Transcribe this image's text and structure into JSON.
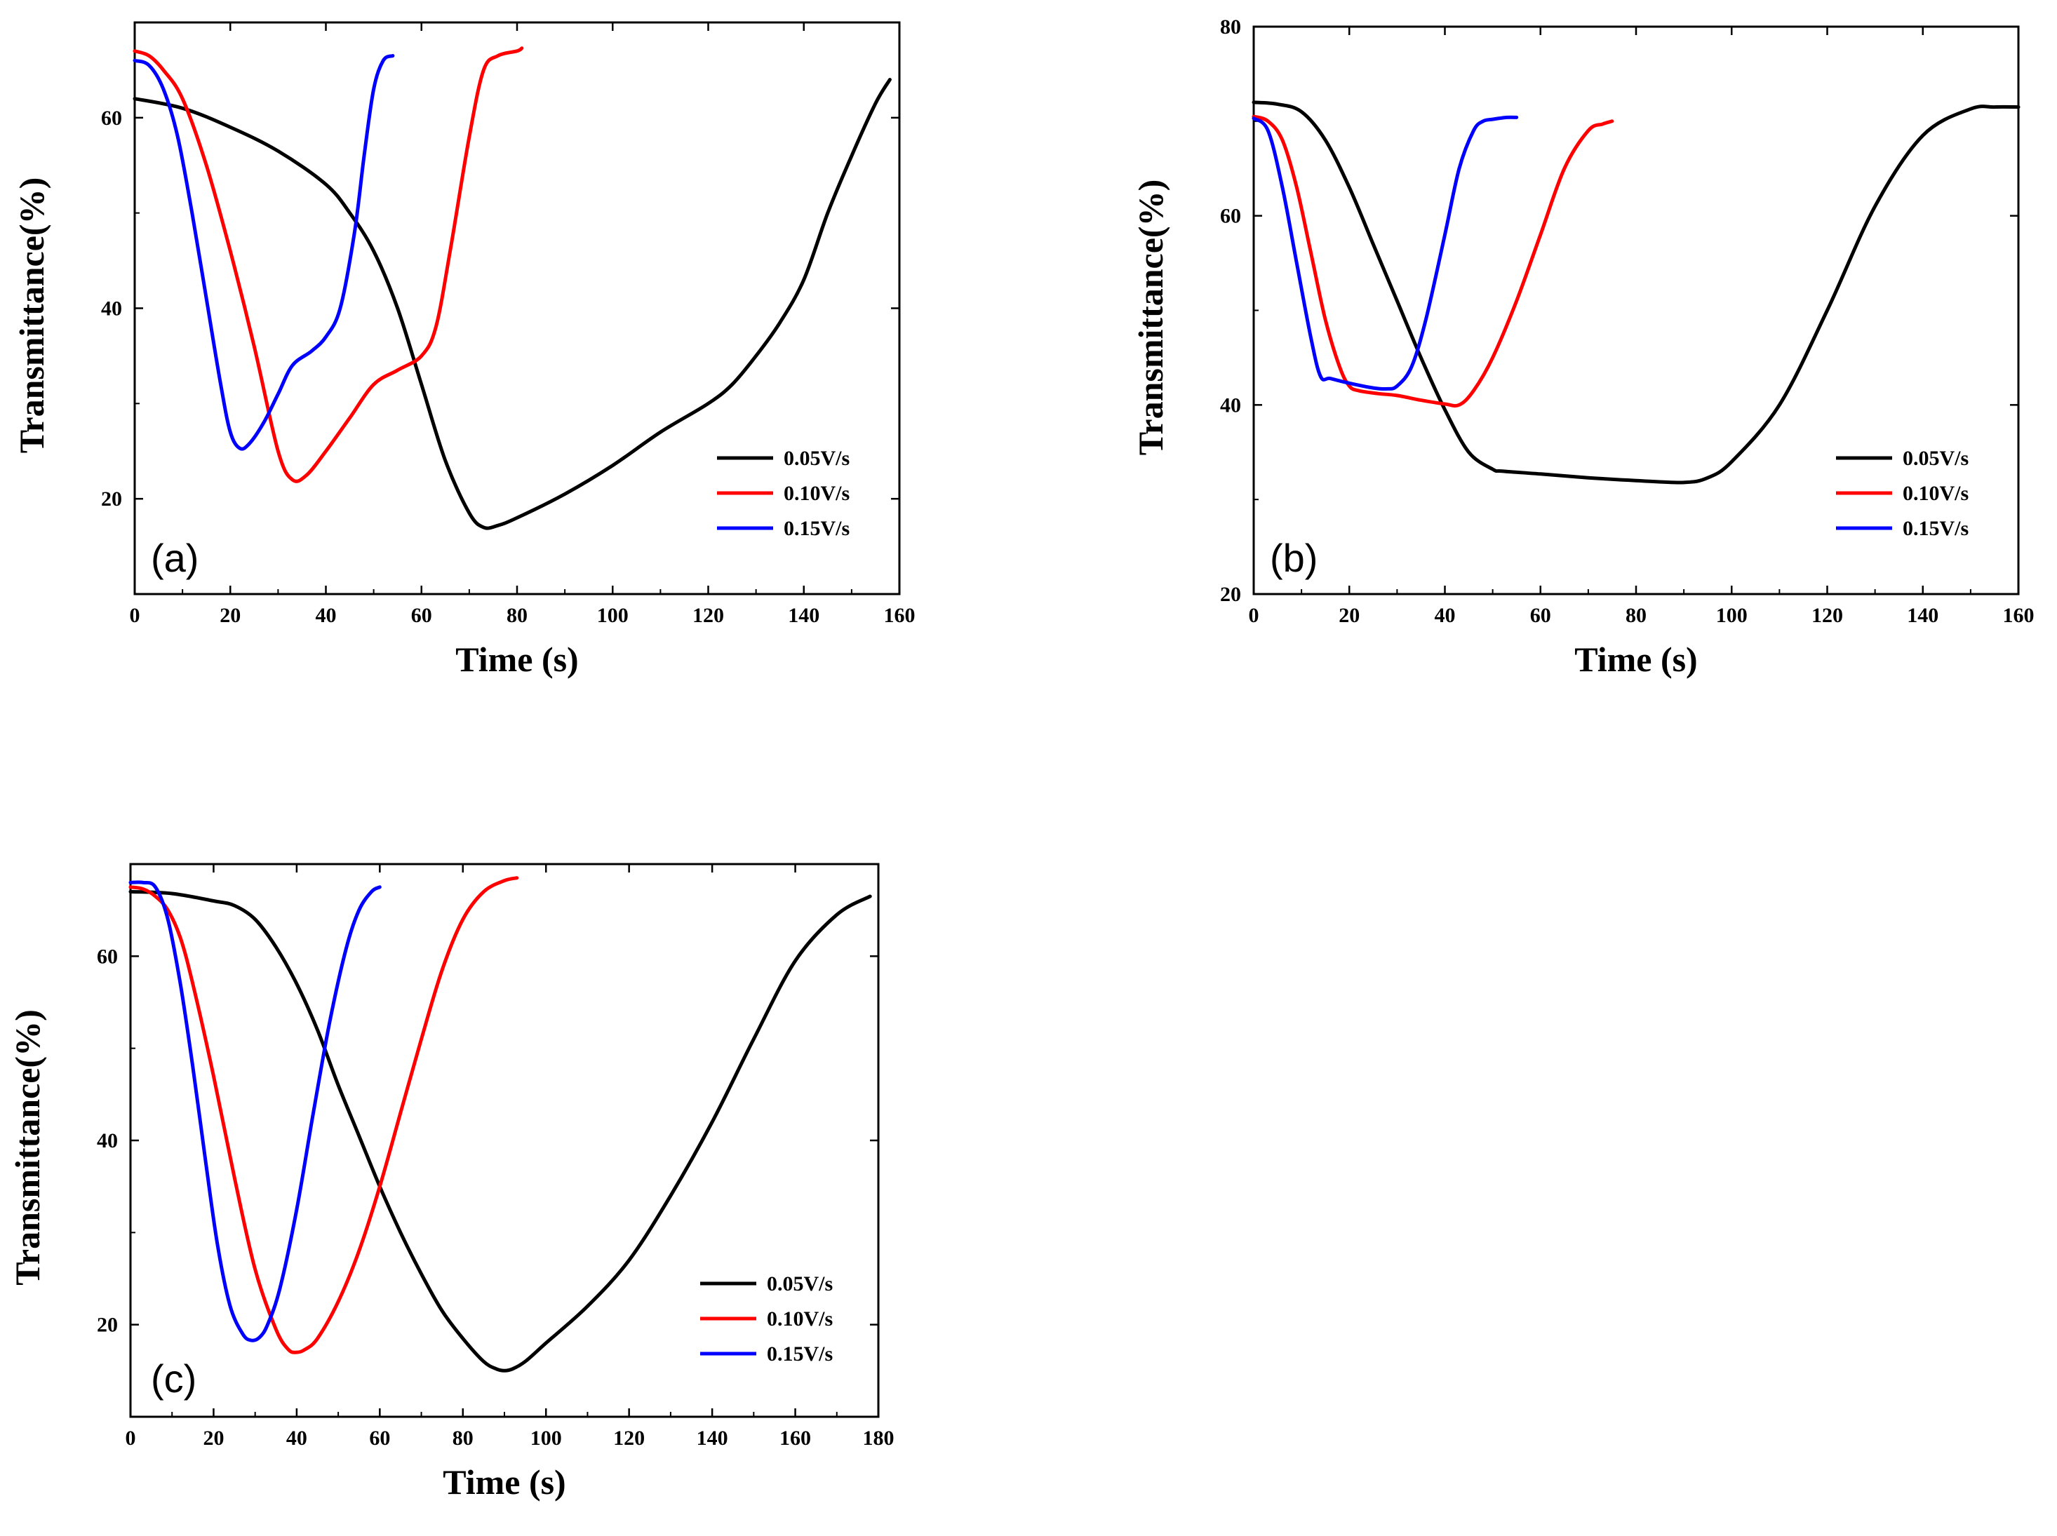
{
  "chart_data": [
    {
      "type": "line",
      "panel_label": "(a)",
      "xlabel": "Time (s)",
      "ylabel": "Transmittance(%)",
      "xlim": [
        0,
        160
      ],
      "ylim": [
        10,
        70
      ],
      "xticks": [
        0,
        20,
        40,
        60,
        80,
        100,
        120,
        140,
        160
      ],
      "yticks": [
        20,
        40,
        60
      ],
      "legend_position": "bottom-right",
      "series": [
        {
          "name": "0.05V/s",
          "color": "#000000",
          "x": [
            0,
            10,
            20,
            30,
            40,
            45,
            50,
            55,
            60,
            65,
            70,
            73,
            76,
            80,
            90,
            100,
            110,
            120,
            125,
            130,
            135,
            140,
            145,
            150,
            155,
            158
          ],
          "y": [
            62,
            61,
            59,
            56.5,
            53,
            50,
            46,
            40,
            32,
            24,
            18.5,
            17,
            17.2,
            18,
            20.5,
            23.5,
            27,
            30,
            32,
            35,
            38.5,
            43,
            50,
            56,
            61.5,
            64
          ]
        },
        {
          "name": "0.10V/s",
          "color": "#ff0000",
          "x": [
            0,
            3,
            6,
            10,
            15,
            20,
            25,
            30,
            33,
            36,
            40,
            45,
            50,
            55,
            60,
            63,
            66,
            70,
            73,
            76,
            80,
            81
          ],
          "y": [
            67,
            66.5,
            65,
            62,
            55,
            46,
            36,
            25,
            22,
            22.5,
            25,
            28.5,
            32,
            33.5,
            35,
            38,
            46,
            58,
            65,
            66.5,
            67,
            67.3
          ]
        },
        {
          "name": "0.15V/s",
          "color": "#0000ff",
          "x": [
            0,
            3,
            6,
            9,
            12,
            15,
            18,
            20,
            22,
            24,
            27,
            30,
            33,
            37,
            40,
            43,
            46,
            48,
            50,
            52,
            54
          ],
          "y": [
            66,
            65.5,
            63,
            58,
            50,
            41,
            32,
            27,
            25.3,
            25.8,
            28,
            31,
            34,
            35.5,
            37,
            40,
            48,
            56,
            63,
            66,
            66.5
          ]
        }
      ]
    },
    {
      "type": "line",
      "panel_label": "(b)",
      "xlabel": "Time (s)",
      "ylabel": "Transmittance(%)",
      "xlim": [
        0,
        160
      ],
      "ylim": [
        20,
        80
      ],
      "xticks": [
        0,
        20,
        40,
        60,
        80,
        100,
        120,
        140,
        160
      ],
      "yticks": [
        20,
        40,
        60,
        80
      ],
      "legend_position": "bottom-right",
      "series": [
        {
          "name": "0.05V/s",
          "color": "#000000",
          "x": [
            0,
            5,
            10,
            15,
            20,
            25,
            30,
            35,
            40,
            45,
            50,
            52,
            60,
            70,
            80,
            90,
            95,
            100,
            110,
            120,
            130,
            140,
            150,
            155,
            160
          ],
          "y": [
            72,
            71.8,
            71,
            68,
            63,
            57,
            51,
            45,
            39.5,
            35,
            33.2,
            33,
            32.7,
            32.3,
            32,
            31.8,
            32.3,
            34,
            40,
            50,
            61,
            68.5,
            71.3,
            71.5,
            71.5
          ]
        },
        {
          "name": "0.10V/s",
          "color": "#ff0000",
          "x": [
            0,
            3,
            6,
            9,
            12,
            15,
            18,
            20,
            22,
            26,
            30,
            35,
            40,
            43,
            46,
            50,
            55,
            60,
            65,
            70,
            73,
            75
          ],
          "y": [
            70.5,
            70,
            68,
            63,
            56,
            49,
            44,
            42,
            41.5,
            41.2,
            41,
            40.5,
            40.1,
            40,
            41.5,
            45,
            51,
            58,
            65,
            69,
            69.7,
            70
          ]
        },
        {
          "name": "0.15V/s",
          "color": "#0000ff",
          "x": [
            0,
            3,
            6,
            9,
            12,
            14,
            16,
            20,
            25,
            28,
            30,
            33,
            36,
            40,
            43,
            46,
            48,
            50,
            53,
            55
          ],
          "y": [
            70.3,
            69,
            63,
            55,
            47,
            43,
            42.8,
            42.3,
            41.8,
            41.7,
            42,
            44,
            49,
            58,
            65,
            69,
            70,
            70.2,
            70.4,
            70.4
          ]
        }
      ]
    },
    {
      "type": "line",
      "panel_label": "(c)",
      "xlabel": "Time (s)",
      "ylabel": "Transmittance(%)",
      "xlim": [
        0,
        180
      ],
      "ylim": [
        10,
        70
      ],
      "xticks": [
        0,
        20,
        40,
        60,
        80,
        100,
        120,
        140,
        160,
        180
      ],
      "yticks": [
        20,
        40,
        60
      ],
      "legend_position": "bottom-right",
      "series": [
        {
          "name": "0.05V/s",
          "color": "#000000",
          "x": [
            0,
            10,
            20,
            25,
            30,
            35,
            40,
            45,
            50,
            55,
            60,
            65,
            70,
            75,
            80,
            85,
            88,
            90,
            92,
            95,
            100,
            110,
            120,
            130,
            140,
            150,
            160,
            170,
            178
          ],
          "y": [
            67,
            66.8,
            66,
            65.5,
            64,
            61,
            57,
            52,
            46,
            40.5,
            35,
            30,
            25.5,
            21.5,
            18.5,
            16,
            15.2,
            15,
            15.2,
            16,
            18,
            22,
            27,
            34,
            42,
            51,
            59.5,
            64.5,
            66.5
          ]
        },
        {
          "name": "0.10V/s",
          "color": "#ff0000",
          "x": [
            0,
            3,
            6,
            9,
            12,
            15,
            20,
            25,
            30,
            35,
            38,
            40,
            42,
            45,
            50,
            55,
            60,
            65,
            70,
            75,
            80,
            85,
            90,
            93
          ],
          "y": [
            67.5,
            67.3,
            66.5,
            65,
            62,
            57,
            47,
            36,
            26,
            19.5,
            17.3,
            17,
            17.3,
            18.5,
            22.5,
            28,
            35,
            43,
            51,
            58.5,
            64,
            67,
            68.2,
            68.5
          ]
        },
        {
          "name": "0.15V/s",
          "color": "#0000ff",
          "x": [
            0,
            3,
            6,
            9,
            12,
            15,
            18,
            21,
            24,
            27,
            29,
            31,
            33,
            36,
            40,
            44,
            48,
            52,
            55,
            58,
            60
          ],
          "y": [
            68,
            68,
            67.5,
            64,
            57,
            48,
            38,
            28.5,
            22,
            19,
            18.3,
            18.6,
            20,
            24,
            32.5,
            43,
            53,
            61,
            65,
            67,
            67.5
          ]
        }
      ]
    }
  ]
}
